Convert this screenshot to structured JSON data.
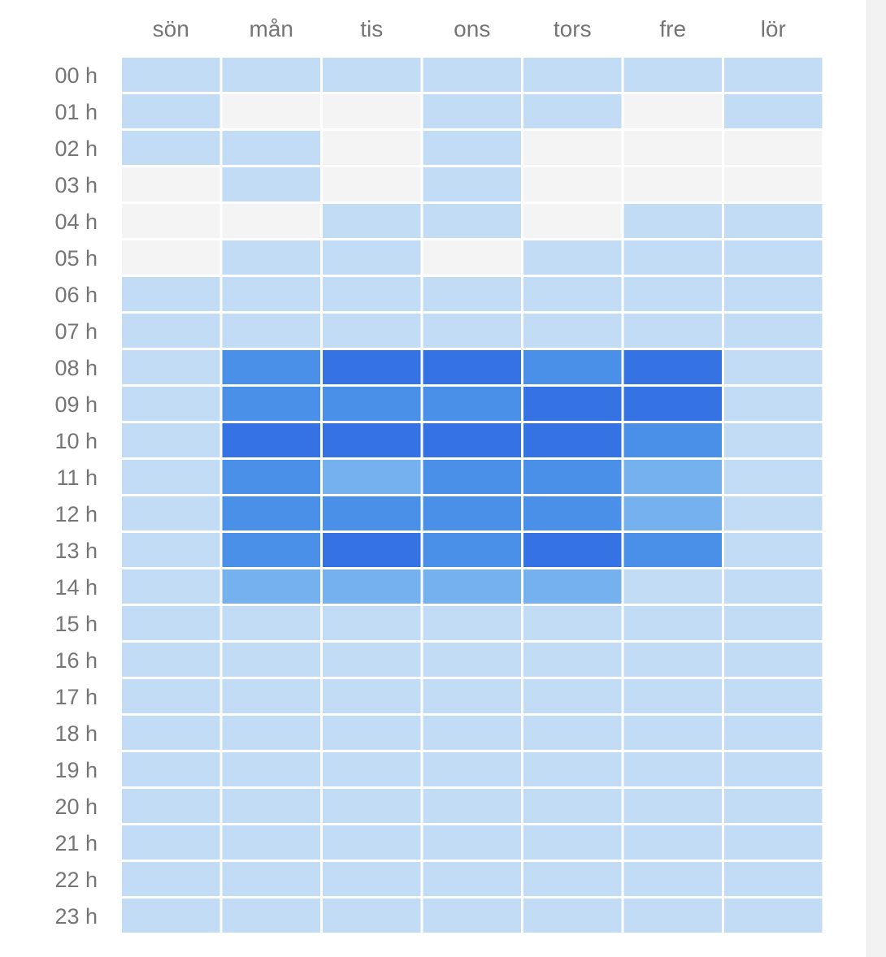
{
  "chart_data": {
    "type": "heatmap",
    "title": "",
    "xlabel": "",
    "ylabel": "",
    "columns": [
      "sön",
      "mån",
      "tis",
      "ons",
      "tors",
      "fre",
      "lör"
    ],
    "rows": [
      "00 h",
      "01 h",
      "02 h",
      "03 h",
      "04 h",
      "05 h",
      "06 h",
      "07 h",
      "08 h",
      "09 h",
      "10 h",
      "11 h",
      "12 h",
      "13 h",
      "14 h",
      "15 h",
      "16 h",
      "17 h",
      "18 h",
      "19 h",
      "20 h",
      "21 h",
      "22 h",
      "23 h"
    ],
    "level_scale": [
      "none",
      "low",
      "medium",
      "high",
      "very-high"
    ],
    "level_colors": [
      "#f4f4f4",
      "#c2dcf6",
      "#75b0ef",
      "#4a90e8",
      "#3573e4"
    ],
    "levels": [
      [
        1,
        1,
        1,
        1,
        1,
        1,
        1
      ],
      [
        1,
        0,
        0,
        1,
        1,
        0,
        1
      ],
      [
        1,
        1,
        0,
        1,
        0,
        0,
        0
      ],
      [
        0,
        1,
        0,
        1,
        0,
        0,
        0
      ],
      [
        0,
        0,
        1,
        1,
        0,
        1,
        1
      ],
      [
        0,
        1,
        1,
        0,
        1,
        1,
        1
      ],
      [
        1,
        1,
        1,
        1,
        1,
        1,
        1
      ],
      [
        1,
        1,
        1,
        1,
        1,
        1,
        1
      ],
      [
        1,
        3,
        4,
        4,
        3,
        4,
        1
      ],
      [
        1,
        3,
        3,
        3,
        4,
        4,
        1
      ],
      [
        1,
        4,
        4,
        4,
        4,
        3,
        1
      ],
      [
        1,
        3,
        2,
        3,
        3,
        2,
        1
      ],
      [
        1,
        3,
        3,
        3,
        3,
        2,
        1
      ],
      [
        1,
        3,
        4,
        3,
        4,
        3,
        1
      ],
      [
        1,
        2,
        2,
        2,
        2,
        1,
        1
      ],
      [
        1,
        1,
        1,
        1,
        1,
        1,
        1
      ],
      [
        1,
        1,
        1,
        1,
        1,
        1,
        1
      ],
      [
        1,
        1,
        1,
        1,
        1,
        1,
        1
      ],
      [
        1,
        1,
        1,
        1,
        1,
        1,
        1
      ],
      [
        1,
        1,
        1,
        1,
        1,
        1,
        1
      ],
      [
        1,
        1,
        1,
        1,
        1,
        1,
        1
      ],
      [
        1,
        1,
        1,
        1,
        1,
        1,
        1
      ],
      [
        1,
        1,
        1,
        1,
        1,
        1,
        1
      ],
      [
        1,
        1,
        1,
        1,
        1,
        1,
        1
      ]
    ],
    "grid": false,
    "legend": "none"
  }
}
